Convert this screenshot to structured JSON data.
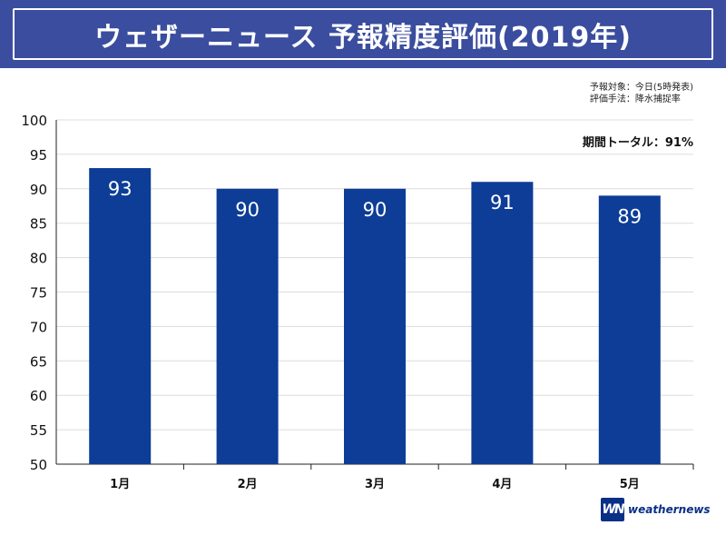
{
  "header": {
    "title": "ウェザーニュース 予報精度評価(2019年)"
  },
  "notes": {
    "line1": "予報対象：今日(5時発表)",
    "line2": "評価手法：降水捕捉率"
  },
  "summary": {
    "total": "期間トータル：91%"
  },
  "colors": {
    "header_bg": "#3a4d9e",
    "bar": "#0d3d96",
    "grid": "#dcdcdc"
  },
  "chart_data": {
    "type": "bar",
    "title": "",
    "xlabel": "",
    "ylabel": "",
    "categories": [
      "1月",
      "2月",
      "3月",
      "4月",
      "5月"
    ],
    "values": [
      93,
      90,
      90,
      91,
      89
    ],
    "ylim": [
      50,
      100
    ],
    "yticks": [
      50,
      55,
      60,
      65,
      70,
      75,
      80,
      85,
      90,
      95,
      100
    ],
    "grid": true,
    "data_labels": [
      "93",
      "90",
      "90",
      "91",
      "89"
    ]
  },
  "logo": {
    "mark_text": "WN",
    "word": "weathernews"
  }
}
